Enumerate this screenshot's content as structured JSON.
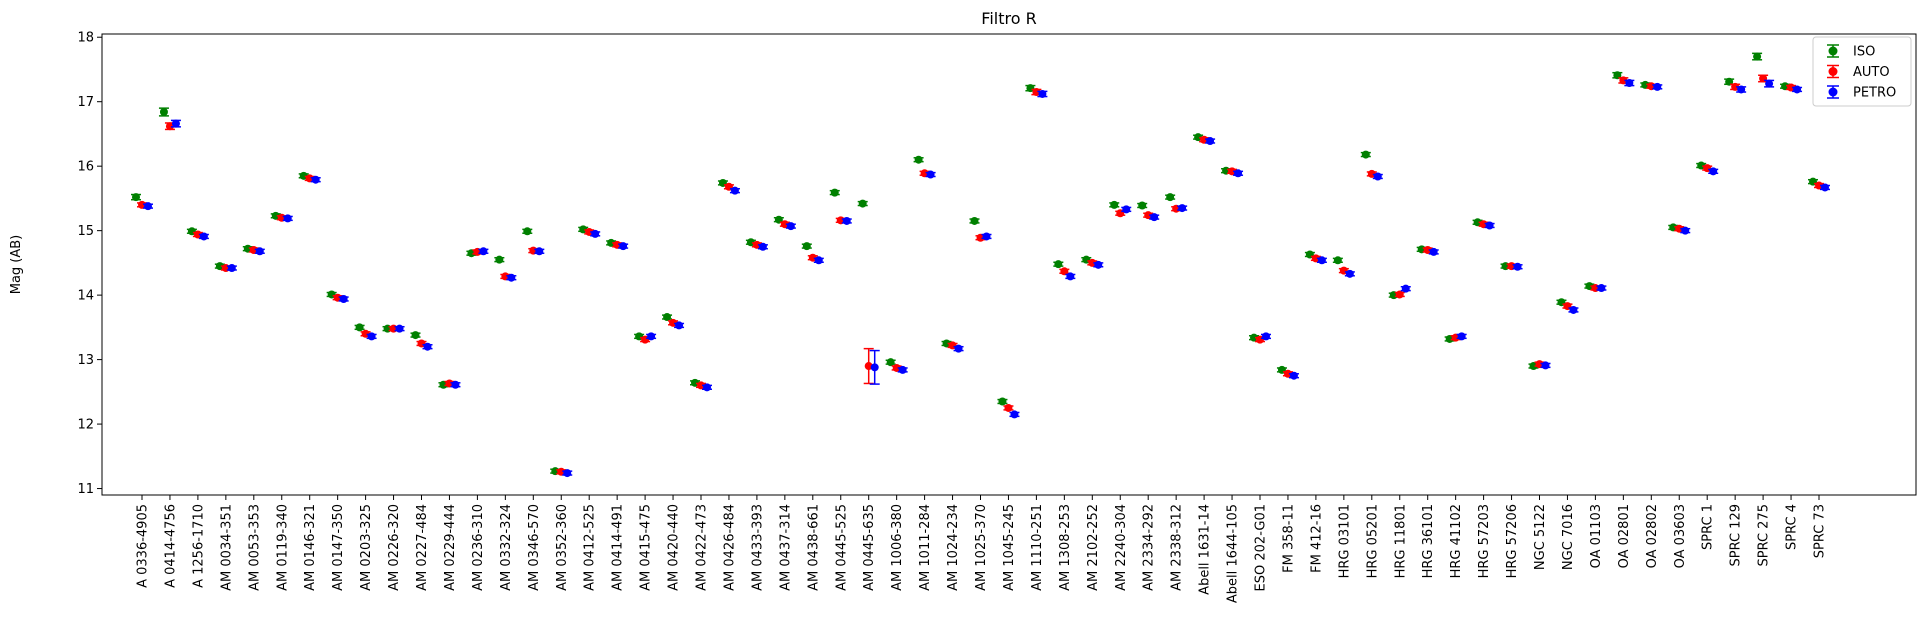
{
  "chart_data": {
    "type": "scatter",
    "title": "Filtro R",
    "ylabel": "Mag (AB)",
    "xlabel": "",
    "ylim": [
      10.9,
      18.05
    ],
    "yticks": [
      11,
      12,
      13,
      14,
      15,
      16,
      17,
      18
    ],
    "grid": false,
    "legend_position": "top-right",
    "categories": [
      "A 0336-4905",
      "A 0414-4756",
      "A 1256-1710",
      "AM 0034-351",
      "AM 0053-353",
      "AM 0119-340",
      "AM 0146-321",
      "AM 0147-350",
      "AM 0203-325",
      "AM 0226-320",
      "AM 0227-484",
      "AM 0229-444",
      "AM 0236-310",
      "AM 0332-324",
      "AM 0346-570",
      "AM 0352-360",
      "AM 0412-525",
      "AM 0414-491",
      "AM 0415-475",
      "AM 0420-440",
      "AM 0422-473",
      "AM 0426-484",
      "AM 0433-393",
      "AM 0437-314",
      "AM 0438-661",
      "AM 0445-525",
      "AM 0445-635",
      "AM 1006-380",
      "AM 1011-284",
      "AM 1024-234",
      "AM 1025-370",
      "AM 1045-245",
      "AM 1110-251",
      "AM 1308-253",
      "AM 2102-252",
      "AM 2240-304",
      "AM 2334-292",
      "AM 2338-312",
      "Abell 1631-14",
      "Abell 1644-105",
      "ESO 202-G01",
      "FM 358-11",
      "FM 412-16",
      "HRG 03101",
      "HRG 05201",
      "HRG 11801",
      "HRG 36101",
      "HRG 41102",
      "HRG 57203",
      "HRG 57206",
      "NGC 5122",
      "NGC 7016",
      "OA 01103",
      "OA 02801",
      "OA 02802",
      "OA 03603",
      "SPRC 1",
      "SPRC 129",
      "SPRC 275",
      "SPRC 4",
      "SPRC 73"
    ],
    "series": [
      {
        "name": "ISO",
        "color": "#008000",
        "values": [
          15.52,
          16.84,
          14.99,
          14.45,
          14.72,
          15.23,
          15.85,
          14.01,
          13.5,
          13.48,
          13.38,
          12.61,
          14.65,
          14.55,
          14.99,
          11.27,
          15.02,
          14.81,
          13.36,
          13.66,
          12.64,
          15.74,
          14.82,
          15.17,
          14.76,
          15.59,
          15.42,
          12.96,
          16.1,
          13.25,
          15.15,
          12.35,
          17.21,
          14.48,
          14.55,
          15.4,
          15.39,
          15.52,
          16.45,
          15.93,
          13.34,
          12.84,
          14.63,
          14.54,
          16.18,
          14.0,
          14.71,
          13.32,
          15.13,
          14.45,
          12.9,
          13.89,
          14.14,
          17.41,
          17.26,
          15.05,
          16.01,
          17.31,
          17.7,
          17.24,
          15.76
        ],
        "errors": [
          0.04,
          0.06,
          0.03,
          0.03,
          0.03,
          0.03,
          0.03,
          0.03,
          0.03,
          0.03,
          0.03,
          0.03,
          0.03,
          0.03,
          0.03,
          0.03,
          0.03,
          0.03,
          0.03,
          0.03,
          0.03,
          0.03,
          0.03,
          0.03,
          0.03,
          0.03,
          0.03,
          0.03,
          0.03,
          0.03,
          0.03,
          0.03,
          0.04,
          0.03,
          0.03,
          0.03,
          0.03,
          0.03,
          0.03,
          0.03,
          0.03,
          0.03,
          0.03,
          0.03,
          0.03,
          0.03,
          0.03,
          0.03,
          0.03,
          0.03,
          0.03,
          0.03,
          0.03,
          0.04,
          0.03,
          0.03,
          0.03,
          0.04,
          0.05,
          0.03,
          0.03
        ]
      },
      {
        "name": "AUTO",
        "color": "#ff0000",
        "values": [
          15.4,
          16.62,
          14.94,
          14.42,
          14.7,
          15.2,
          15.81,
          13.96,
          13.4,
          13.48,
          13.25,
          12.63,
          14.67,
          14.29,
          14.69,
          11.26,
          14.98,
          14.78,
          13.31,
          13.57,
          12.6,
          15.68,
          14.78,
          15.1,
          14.58,
          15.16,
          12.9,
          12.87,
          15.89,
          13.22,
          14.89,
          12.25,
          17.15,
          14.37,
          14.5,
          15.27,
          15.24,
          15.34,
          16.41,
          15.92,
          13.31,
          12.78,
          14.57,
          14.38,
          15.88,
          14.01,
          14.7,
          13.34,
          15.1,
          14.45,
          12.93,
          13.83,
          14.11,
          17.33,
          17.24,
          15.03,
          15.97,
          17.23,
          17.36,
          17.22,
          15.7
        ],
        "errors": [
          0.03,
          0.05,
          0.03,
          0.03,
          0.03,
          0.03,
          0.03,
          0.03,
          0.03,
          0.03,
          0.03,
          0.03,
          0.03,
          0.03,
          0.03,
          0.03,
          0.03,
          0.03,
          0.03,
          0.03,
          0.03,
          0.03,
          0.03,
          0.03,
          0.03,
          0.03,
          0.27,
          0.03,
          0.03,
          0.03,
          0.03,
          0.03,
          0.04,
          0.03,
          0.03,
          0.03,
          0.03,
          0.03,
          0.03,
          0.03,
          0.03,
          0.03,
          0.03,
          0.03,
          0.03,
          0.03,
          0.03,
          0.03,
          0.03,
          0.03,
          0.03,
          0.03,
          0.03,
          0.04,
          0.03,
          0.03,
          0.03,
          0.04,
          0.05,
          0.03,
          0.03
        ]
      },
      {
        "name": "PETRO",
        "color": "#0000ff",
        "values": [
          15.38,
          16.66,
          14.91,
          14.42,
          14.68,
          15.19,
          15.79,
          13.94,
          13.36,
          13.48,
          13.2,
          12.61,
          14.68,
          14.27,
          14.68,
          11.24,
          14.95,
          14.76,
          13.36,
          13.53,
          12.57,
          15.62,
          14.75,
          15.07,
          14.54,
          15.15,
          12.88,
          12.84,
          15.87,
          13.17,
          14.91,
          12.15,
          17.12,
          14.29,
          14.47,
          15.33,
          15.21,
          15.35,
          16.39,
          15.89,
          13.36,
          12.75,
          14.54,
          14.33,
          15.84,
          14.1,
          14.67,
          13.36,
          15.08,
          14.44,
          12.91,
          13.77,
          14.11,
          17.29,
          17.23,
          15.0,
          15.92,
          17.19,
          17.28,
          17.19,
          15.67
        ],
        "errors": [
          0.03,
          0.05,
          0.03,
          0.03,
          0.03,
          0.03,
          0.03,
          0.03,
          0.03,
          0.03,
          0.03,
          0.03,
          0.03,
          0.03,
          0.03,
          0.03,
          0.03,
          0.03,
          0.03,
          0.03,
          0.03,
          0.03,
          0.03,
          0.03,
          0.03,
          0.03,
          0.26,
          0.03,
          0.03,
          0.03,
          0.03,
          0.03,
          0.04,
          0.03,
          0.03,
          0.03,
          0.03,
          0.03,
          0.03,
          0.03,
          0.03,
          0.03,
          0.03,
          0.03,
          0.03,
          0.03,
          0.03,
          0.03,
          0.03,
          0.03,
          0.03,
          0.03,
          0.03,
          0.04,
          0.03,
          0.03,
          0.03,
          0.04,
          0.05,
          0.03,
          0.03
        ]
      }
    ]
  }
}
